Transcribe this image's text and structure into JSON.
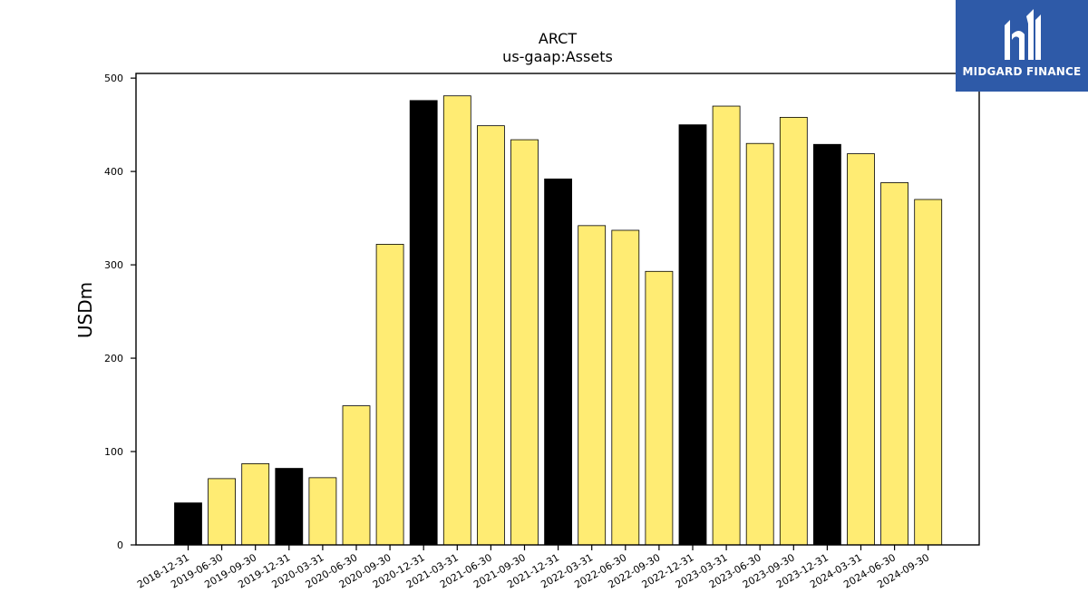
{
  "chart_data": {
    "type": "bar",
    "title": "ARCT",
    "subtitle": "us-gaap:Assets",
    "ylabel": "USDm",
    "ylim": [
      0,
      505
    ],
    "yticks": [
      0,
      100,
      200,
      300,
      400,
      500
    ],
    "categories": [
      "2018-12-31",
      "2019-06-30",
      "2019-09-30",
      "2019-12-31",
      "2020-03-31",
      "2020-06-30",
      "2020-09-30",
      "2020-12-31",
      "2021-03-31",
      "2021-06-30",
      "2021-09-30",
      "2021-12-31",
      "2022-03-31",
      "2022-06-30",
      "2022-09-30",
      "2022-12-31",
      "2023-03-31",
      "2023-06-30",
      "2023-09-30",
      "2023-12-31",
      "2024-03-31",
      "2024-06-30",
      "2024-09-30"
    ],
    "values": [
      45,
      71,
      87,
      82,
      72,
      149,
      322,
      476,
      481,
      449,
      434,
      392,
      342,
      337,
      293,
      450,
      470,
      430,
      458,
      429,
      419,
      388,
      370
    ],
    "annual": [
      true,
      false,
      false,
      true,
      false,
      false,
      false,
      true,
      false,
      false,
      false,
      true,
      false,
      false,
      false,
      true,
      false,
      false,
      false,
      true,
      false,
      false,
      false
    ],
    "colors": {
      "annual": "#000000",
      "quarterly": "#ffec73",
      "edge": "#000000"
    },
    "grid": false,
    "legend": "none"
  },
  "brand": {
    "name": "MIDGARD FINANCE",
    "background": "#2e5aa8",
    "icon": "midgard-logo-icon"
  }
}
